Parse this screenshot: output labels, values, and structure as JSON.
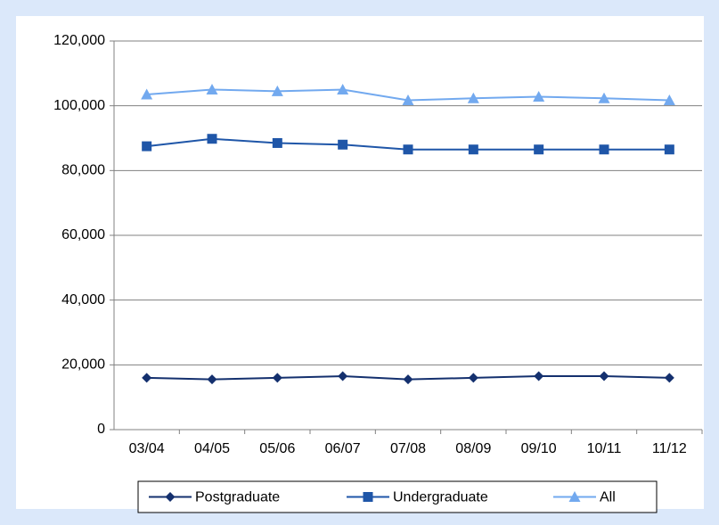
{
  "chart_data": {
    "type": "line",
    "categories": [
      "03/04",
      "04/05",
      "05/06",
      "06/07",
      "07/08",
      "08/09",
      "09/10",
      "10/11",
      "11/12"
    ],
    "series": [
      {
        "name": "Postgraduate",
        "color": "#14306e",
        "marker": "diamond",
        "values": [
          16000,
          15500,
          16000,
          16500,
          15500,
          16000,
          16500,
          16500,
          16000
        ]
      },
      {
        "name": "Undergraduate",
        "color": "#1f56a8",
        "marker": "square",
        "values": [
          87500,
          89800,
          88500,
          88000,
          86500,
          86500,
          86500,
          86500,
          86500
        ]
      },
      {
        "name": "All",
        "color": "#72a9ef",
        "marker": "triangle",
        "values": [
          103500,
          105000,
          104500,
          105000,
          101700,
          102300,
          102800,
          102300,
          101700
        ]
      }
    ],
    "ylim": [
      0,
      120000
    ],
    "yticks": [
      0,
      {
        "value": 20000,
        "label": "20,000"
      },
      {
        "value": 40000,
        "label": "40,000"
      },
      {
        "value": 60000,
        "label": "60,000"
      },
      {
        "value": 80000,
        "label": "80,000"
      },
      {
        "value": 100000,
        "label": "100,000"
      },
      {
        "value": 120000,
        "label": "120,000"
      }
    ],
    "grid": true,
    "legend": "bottom"
  }
}
